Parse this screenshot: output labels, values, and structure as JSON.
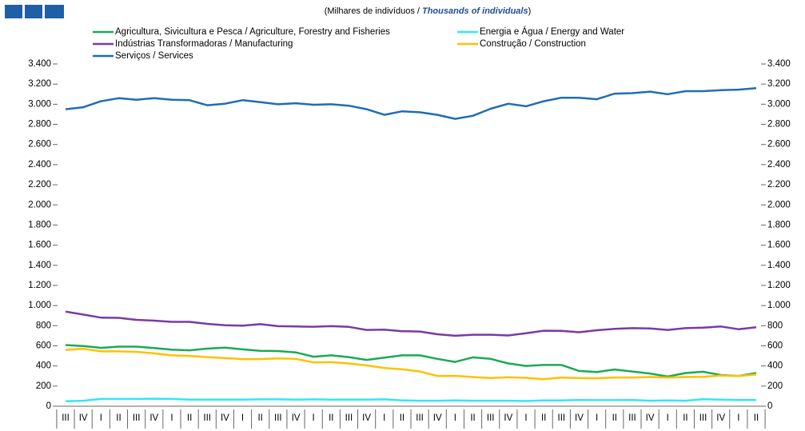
{
  "chart_data": {
    "type": "line",
    "subtitle": [
      "(Milhares de indivíduos / ",
      "Thousands of individuals",
      ")"
    ],
    "categories": [
      "III",
      "IV",
      "I",
      "II",
      "III",
      "IV",
      "I",
      "II",
      "III",
      "IV",
      "I",
      "II",
      "III",
      "IV",
      "I",
      "II",
      "III",
      "IV",
      "I",
      "II",
      "III",
      "IV",
      "I",
      "II",
      "III",
      "IV",
      "I",
      "II",
      "III",
      "IV",
      "I",
      "II",
      "III",
      "IV",
      "I",
      "II",
      "III",
      "IV",
      "I",
      "II"
    ],
    "series": [
      {
        "name": "Agricultura, Sivicultura e Pesca / Agriculture, Forestry and Fisheries",
        "color": "#1aaa55",
        "values": [
          608,
          598,
          580,
          592,
          592,
          578,
          562,
          555,
          572,
          582,
          565,
          550,
          548,
          535,
          492,
          505,
          488,
          460,
          482,
          505,
          505,
          470,
          440,
          485,
          470,
          425,
          400,
          410,
          410,
          350,
          340,
          365,
          345,
          325,
          295,
          330,
          342,
          310,
          300,
          330
        ]
      },
      {
        "name": "Energia e Água / Energy and Water",
        "color": "#33e6f5",
        "values": [
          50,
          55,
          72,
          72,
          72,
          75,
          72,
          65,
          65,
          65,
          65,
          68,
          68,
          65,
          68,
          65,
          65,
          65,
          68,
          58,
          55,
          55,
          58,
          55,
          55,
          55,
          52,
          58,
          58,
          62,
          60,
          60,
          62,
          55,
          58,
          55,
          70,
          65,
          62,
          62
        ]
      },
      {
        "name": "Indústrias Transformadoras / Manufacturing",
        "color": "#7a3aa6",
        "values": [
          940,
          910,
          880,
          878,
          858,
          850,
          838,
          838,
          818,
          805,
          800,
          815,
          795,
          792,
          790,
          795,
          788,
          758,
          760,
          745,
          742,
          715,
          700,
          710,
          710,
          703,
          725,
          750,
          748,
          735,
          755,
          768,
          775,
          772,
          758,
          775,
          780,
          792,
          765,
          785
        ]
      },
      {
        "name": "Construção / Construction",
        "color": "#ffc000",
        "values": [
          560,
          570,
          545,
          545,
          540,
          525,
          505,
          500,
          488,
          478,
          468,
          468,
          475,
          470,
          435,
          438,
          425,
          405,
          380,
          368,
          345,
          300,
          302,
          290,
          280,
          288,
          282,
          268,
          285,
          280,
          278,
          285,
          285,
          290,
          285,
          290,
          292,
          305,
          300,
          315
        ]
      },
      {
        "name": "Serviços / Services",
        "color": "#1f6db5",
        "values": [
          2950,
          2970,
          3030,
          3060,
          3045,
          3060,
          3045,
          3040,
          2990,
          3005,
          3040,
          3020,
          3000,
          3010,
          2995,
          3000,
          2985,
          2950,
          2895,
          2930,
          2920,
          2895,
          2855,
          2885,
          2955,
          3005,
          2980,
          3030,
          3065,
          3065,
          3050,
          3105,
          3110,
          3125,
          3100,
          3130,
          3130,
          3140,
          3145,
          3160
        ]
      }
    ],
    "ylim": [
      0,
      3400
    ],
    "yticks": [
      0,
      200,
      400,
      600,
      800,
      {
        "value": 1000,
        "label": "1.000"
      },
      {
        "value": 1200,
        "label": "1.200"
      },
      {
        "value": 1400,
        "label": "1.400"
      },
      {
        "value": 1600,
        "label": "1.600"
      },
      {
        "value": 1800,
        "label": "1.800"
      },
      {
        "value": 2000,
        "label": "2.000"
      },
      {
        "value": 2200,
        "label": "2.200"
      },
      {
        "value": 2400,
        "label": "2.400"
      },
      {
        "value": 2600,
        "label": "2.600"
      },
      {
        "value": 2800,
        "label": "2.800"
      },
      {
        "value": 3000,
        "label": "3.000"
      },
      {
        "value": 3200,
        "label": "3.200"
      },
      {
        "value": 3400,
        "label": "3.400"
      }
    ],
    "grid": false
  }
}
